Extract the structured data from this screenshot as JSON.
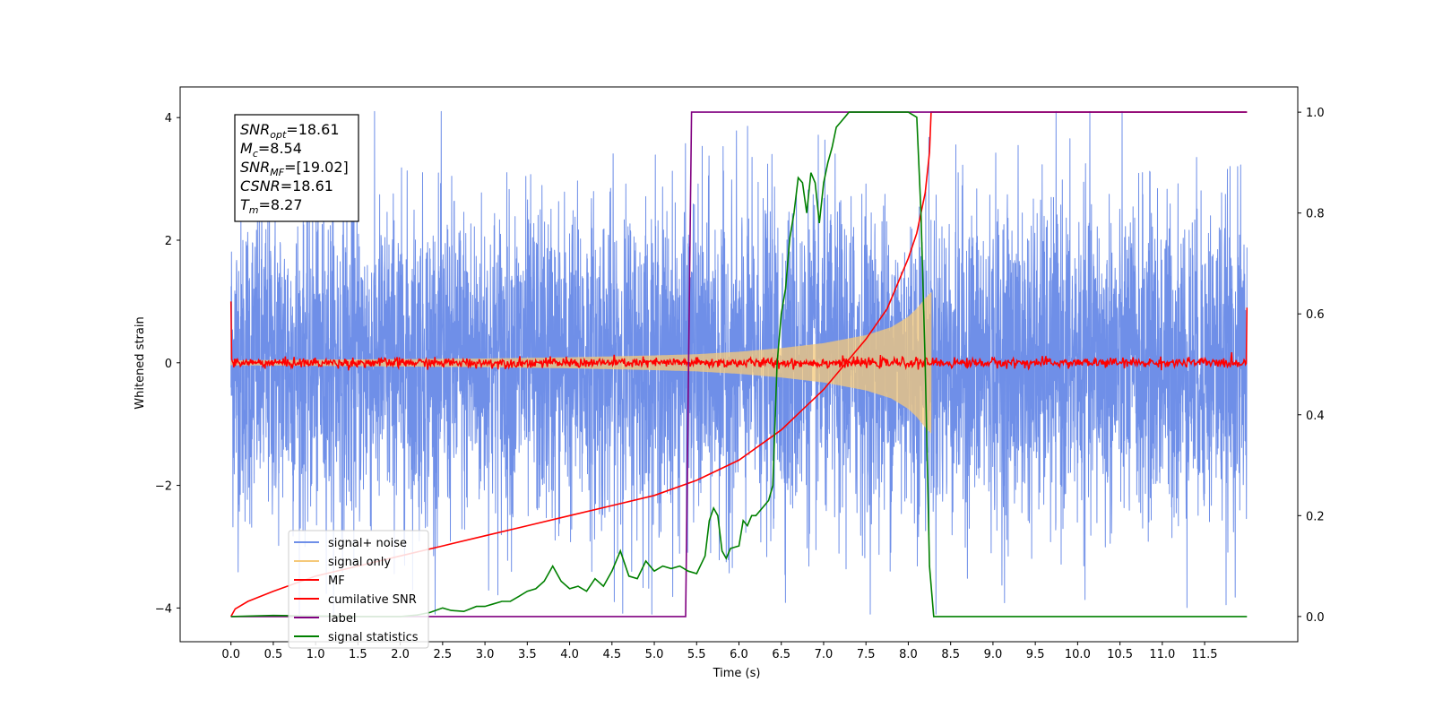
{
  "chart_data": {
    "type": "line",
    "xlabel": "Time (s)",
    "ylabel": "Whitened strain",
    "xlim": [
      -0.6,
      12.6
    ],
    "ylim": [
      -4.55,
      4.5
    ],
    "y2lim": [
      -0.05,
      1.05
    ],
    "xticks": [
      "0.0",
      "0.5",
      "1.0",
      "1.5",
      "2.0",
      "2.5",
      "3.0",
      "3.5",
      "4.0",
      "4.5",
      "5.0",
      "5.5",
      "6.0",
      "6.5",
      "7.0",
      "7.5",
      "8.0",
      "8.5",
      "9.0",
      "9.5",
      "10.0",
      "10.5",
      "11.0",
      "11.5"
    ],
    "xtick_values": [
      0,
      0.5,
      1,
      1.5,
      2,
      2.5,
      3,
      3.5,
      4,
      4.5,
      5,
      5.5,
      6,
      6.5,
      7,
      7.5,
      8,
      8.5,
      9,
      9.5,
      10,
      10.5,
      11,
      11.5
    ],
    "yticks": [
      "4",
      "2",
      "0",
      "−2",
      "−4"
    ],
    "ytick_values": [
      4,
      2,
      0,
      -2,
      -4
    ],
    "y2ticks": [
      "1.0",
      "0.8",
      "0.6",
      "0.4",
      "0.2",
      "0.0"
    ],
    "y2tick_values": [
      1,
      0.8,
      0.6,
      0.4,
      0.2,
      0
    ],
    "annotation": [
      {
        "base": "SNR",
        "sub": "opt",
        "value": "=18.61"
      },
      {
        "base": "M",
        "sub": "c",
        "value": "=8.54"
      },
      {
        "base": "SNR",
        "sub": "MF",
        "value": "=[19.02]"
      },
      {
        "base": "CSNR",
        "sub": "",
        "value": "=18.61"
      },
      {
        "base": "T",
        "sub": "m",
        "value": "=8.27"
      }
    ],
    "legend": [
      {
        "name": "signal+ noise",
        "color": "#6f8fe8"
      },
      {
        "name": "signal only",
        "color": "#f5c97a"
      },
      {
        "name": "MF",
        "color": "#ff0000"
      },
      {
        "name": "cumilative SNR",
        "color": "#ff0000"
      },
      {
        "name": "label",
        "color": "#800080"
      },
      {
        "name": "signal statistics",
        "color": "#008000"
      }
    ],
    "series": [
      {
        "id": "signal_noise",
        "name": "signal+ noise",
        "axis": "left",
        "color": "#6f8fe8",
        "x_range": [
          0,
          12
        ],
        "amplitude_typical": 1.3,
        "amplitude_peak": 4.1
      },
      {
        "id": "signal_only",
        "name": "signal only",
        "axis": "left",
        "color": "#f5c97a",
        "x_range": [
          0,
          8.27
        ],
        "envelope_x": [
          0,
          1,
          2,
          3,
          4,
          5,
          5.5,
          6,
          6.5,
          7,
          7.5,
          7.8,
          8.0,
          8.1,
          8.2,
          8.27
        ],
        "envelope_y": [
          0.04,
          0.05,
          0.06,
          0.07,
          0.09,
          0.12,
          0.14,
          0.18,
          0.24,
          0.32,
          0.45,
          0.58,
          0.75,
          0.88,
          1.05,
          1.15
        ]
      },
      {
        "id": "mf",
        "name": "MF",
        "axis": "left",
        "color": "#ff0000",
        "x_range": [
          0,
          12
        ],
        "edge_start": 1.0,
        "edge_end": 0.9,
        "noise_amp": 0.08
      },
      {
        "id": "cum_snr",
        "name": "cumilative SNR",
        "axis": "right",
        "color": "#ff0000",
        "x": [
          0,
          0.05,
          0.2,
          0.5,
          1,
          1.5,
          2,
          2.5,
          3,
          3.5,
          4,
          4.5,
          5,
          5.5,
          6,
          6.5,
          7,
          7.25,
          7.5,
          7.75,
          8.0,
          8.1,
          8.2,
          8.25,
          8.27,
          8.3,
          12
        ],
        "y": [
          0.0,
          0.015,
          0.03,
          0.05,
          0.08,
          0.1,
          0.12,
          0.14,
          0.16,
          0.18,
          0.2,
          0.22,
          0.24,
          0.27,
          0.31,
          0.37,
          0.45,
          0.5,
          0.55,
          0.61,
          0.71,
          0.76,
          0.84,
          0.92,
          1.0,
          1.0,
          1.0
        ]
      },
      {
        "id": "label",
        "name": "label",
        "axis": "right",
        "color": "#800080",
        "x": [
          0,
          5.37,
          5.44,
          8.22,
          8.24,
          8.3,
          8.31,
          12
        ],
        "y": [
          0,
          0,
          1,
          1,
          1,
          1,
          1,
          1
        ]
      },
      {
        "id": "stats",
        "name": "signal statistics",
        "axis": "right",
        "color": "#008000",
        "x": [
          0,
          0.5,
          1,
          1.5,
          2,
          2.2,
          2.35,
          2.5,
          2.6,
          2.75,
          2.9,
          3.0,
          3.1,
          3.2,
          3.3,
          3.4,
          3.5,
          3.6,
          3.7,
          3.8,
          3.9,
          4.0,
          4.1,
          4.2,
          4.3,
          4.4,
          4.5,
          4.6,
          4.7,
          4.8,
          4.9,
          5.0,
          5.1,
          5.2,
          5.3,
          5.4,
          5.5,
          5.6,
          5.65,
          5.7,
          5.75,
          5.8,
          5.85,
          5.9,
          6.0,
          6.05,
          6.1,
          6.15,
          6.2,
          6.3,
          6.35,
          6.4,
          6.45,
          6.5,
          6.55,
          6.6,
          6.65,
          6.7,
          6.75,
          6.8,
          6.85,
          6.9,
          6.95,
          7.0,
          7.05,
          7.1,
          7.15,
          7.2,
          7.25,
          7.3,
          7.4,
          7.5,
          7.6,
          7.8,
          8.0,
          8.1,
          8.15,
          8.2,
          8.25,
          8.3,
          8.35,
          12
        ],
        "y": [
          0.0,
          0.002,
          0.001,
          0.0,
          0.0,
          0.003,
          0.008,
          0.017,
          0.012,
          0.01,
          0.02,
          0.02,
          0.025,
          0.03,
          0.03,
          0.04,
          0.05,
          0.055,
          0.07,
          0.1,
          0.07,
          0.055,
          0.06,
          0.05,
          0.075,
          0.06,
          0.09,
          0.13,
          0.08,
          0.075,
          0.11,
          0.09,
          0.1,
          0.095,
          0.1,
          0.09,
          0.085,
          0.12,
          0.19,
          0.215,
          0.2,
          0.13,
          0.115,
          0.135,
          0.14,
          0.19,
          0.18,
          0.2,
          0.2,
          0.22,
          0.23,
          0.26,
          0.5,
          0.6,
          0.65,
          0.75,
          0.8,
          0.87,
          0.86,
          0.8,
          0.88,
          0.86,
          0.78,
          0.86,
          0.9,
          0.93,
          0.97,
          0.98,
          0.99,
          1.0,
          1.0,
          1.0,
          1.0,
          1.0,
          1.0,
          0.99,
          0.8,
          0.5,
          0.1,
          0.0,
          0.0,
          0.0
        ]
      }
    ]
  }
}
